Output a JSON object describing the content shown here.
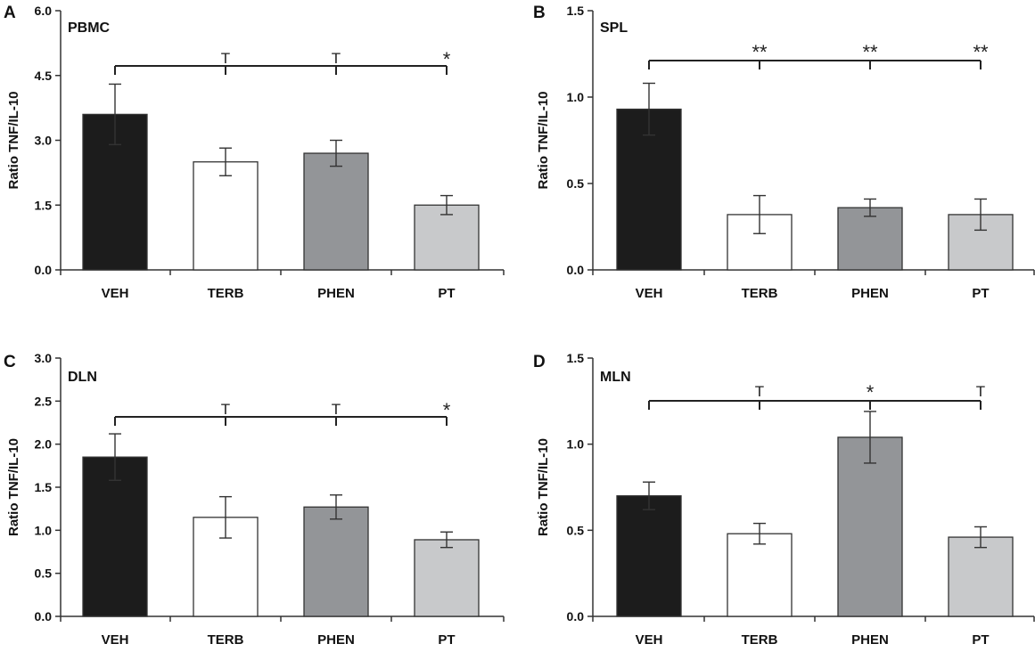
{
  "chart_data": [
    {
      "type": "bar",
      "panel": "A",
      "title": "PBMC",
      "ylabel": "Ratio TNF/IL-10",
      "xlabel": "",
      "categories": [
        "VEH",
        "TERB",
        "PHEN",
        "PT"
      ],
      "values": [
        3.6,
        2.5,
        2.7,
        1.5
      ],
      "errors": [
        0.7,
        0.32,
        0.3,
        0.22
      ],
      "ylim": [
        0,
        6.0
      ],
      "yticks": [
        "0.0",
        "1.5",
        "3.0",
        "4.5",
        "6.0"
      ],
      "significance": [
        "",
        "T",
        "T",
        "*"
      ],
      "colors": [
        "#1c1c1c",
        "#ffffff",
        "#939598",
        "#c8c9cb"
      ]
    },
    {
      "type": "bar",
      "panel": "B",
      "title": "SPL",
      "ylabel": "Ratio TNF/IL-10",
      "xlabel": "",
      "categories": [
        "VEH",
        "TERB",
        "PHEN",
        "PT"
      ],
      "values": [
        0.93,
        0.32,
        0.36,
        0.32
      ],
      "errors": [
        0.15,
        0.11,
        0.05,
        0.09
      ],
      "ylim": [
        0,
        1.5
      ],
      "yticks": [
        "0.0",
        "0.5",
        "1.0",
        "1.5"
      ],
      "significance": [
        "",
        "**",
        "**",
        "**"
      ],
      "colors": [
        "#1c1c1c",
        "#ffffff",
        "#939598",
        "#c8c9cb"
      ]
    },
    {
      "type": "bar",
      "panel": "C",
      "title": "DLN",
      "ylabel": "Ratio TNF/IL-10",
      "xlabel": "",
      "categories": [
        "VEH",
        "TERB",
        "PHEN",
        "PT"
      ],
      "values": [
        1.85,
        1.15,
        1.27,
        0.89
      ],
      "errors": [
        0.27,
        0.24,
        0.14,
        0.09
      ],
      "ylim": [
        0,
        3.0
      ],
      "yticks": [
        "0.0",
        "0.5",
        "1.0",
        "1.5",
        "2.0",
        "2.5",
        "3.0"
      ],
      "significance": [
        "",
        "T",
        "T",
        "*"
      ],
      "colors": [
        "#1c1c1c",
        "#ffffff",
        "#939598",
        "#c8c9cb"
      ]
    },
    {
      "type": "bar",
      "panel": "D",
      "title": "MLN",
      "ylabel": "Ratio TNF/IL-10",
      "xlabel": "",
      "categories": [
        "VEH",
        "TERB",
        "PHEN",
        "PT"
      ],
      "values": [
        0.7,
        0.48,
        1.04,
        0.46
      ],
      "errors": [
        0.08,
        0.06,
        0.15,
        0.06
      ],
      "ylim": [
        0,
        1.5
      ],
      "yticks": [
        "0.0",
        "0.5",
        "1.0",
        "1.5"
      ],
      "significance": [
        "",
        "T",
        "*",
        "T"
      ],
      "colors": [
        "#1c1c1c",
        "#ffffff",
        "#939598",
        "#c8c9cb"
      ]
    }
  ]
}
